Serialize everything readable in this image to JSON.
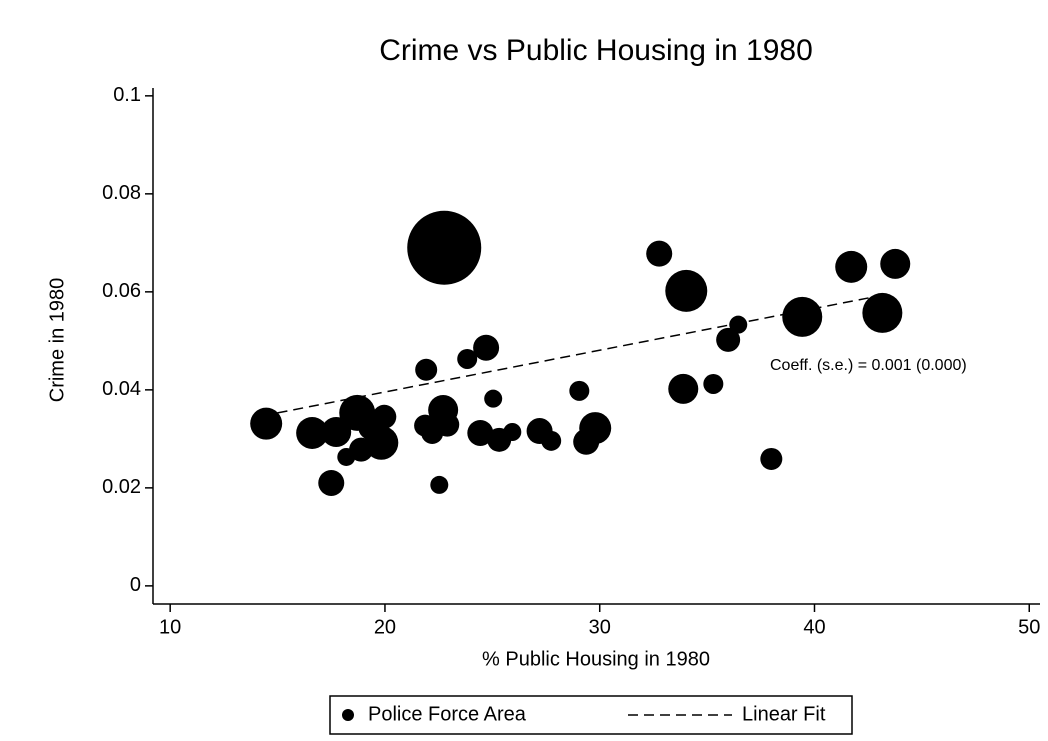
{
  "chart_data": {
    "type": "scatter",
    "title": "Crime vs Public Housing in 1980",
    "x_label": "% Public Housing in 1980",
    "y_label": "Crime in 1980",
    "annotation": "Coeff. (s.e.) = 0.001 (0.000)",
    "xlim": [
      9.2,
      50.5
    ],
    "ylim": [
      -0.0037,
      0.1016
    ],
    "xticks": [
      10,
      20,
      30,
      40,
      50
    ],
    "yticks": [
      0,
      0.02,
      0.04,
      0.06,
      0.08,
      0.1
    ],
    "grid": false,
    "legend_position": "bottom",
    "series": [
      {
        "name": "Police Force Area",
        "type": "scatter",
        "color": "#000000",
        "x": [
          14.47,
          16.61,
          17.5,
          17.73,
          18.2,
          18.71,
          18.89,
          19.36,
          19.83,
          19.97,
          21.92,
          21.87,
          22.2,
          22.53,
          22.76,
          22.71,
          22.9,
          23.83,
          24.71,
          24.44,
          25.04,
          25.32,
          25.93,
          27.2,
          27.74,
          29.05,
          29.37,
          29.79,
          32.77,
          33.89,
          34.03,
          35.29,
          35.98,
          36.45,
          37.99,
          39.43,
          41.71,
          43.76,
          43.16
        ],
        "values": [
          0.0331,
          0.0312,
          0.021,
          0.0314,
          0.0263,
          0.0353,
          0.0278,
          0.0324,
          0.0292,
          0.0345,
          0.0441,
          0.0327,
          0.0312,
          0.0206,
          0.069,
          0.0359,
          0.0329,
          0.0463,
          0.0486,
          0.0312,
          0.0382,
          0.0298,
          0.0314,
          0.0316,
          0.0296,
          0.0398,
          0.0294,
          0.0322,
          0.0678,
          0.0402,
          0.0602,
          0.0412,
          0.0502,
          0.0533,
          0.0259,
          0.0549,
          0.0651,
          0.0657,
          0.0557
        ],
        "sizes": [
          25.6,
          25.6,
          16.9,
          22.5,
          8.1,
          32.4,
          14.4,
          16.9,
          28.9,
          14.4,
          12.1,
          12.1,
          12.1,
          8.1,
          136.9,
          22.5,
          14.4,
          10,
          16.9,
          16.9,
          8.1,
          14.4,
          8.1,
          16.9,
          10,
          10,
          16.9,
          25.6,
          16.9,
          22.5,
          44.1,
          10,
          14.4,
          8.1,
          12.1,
          40,
          25.6,
          22.5,
          40
        ]
      },
      {
        "name": "Linear Fit",
        "type": "line",
        "color": "#000000",
        "dashed": true,
        "x": [
          15,
          42.8
        ],
        "values": [
          0.0353,
          0.059
        ]
      }
    ]
  }
}
